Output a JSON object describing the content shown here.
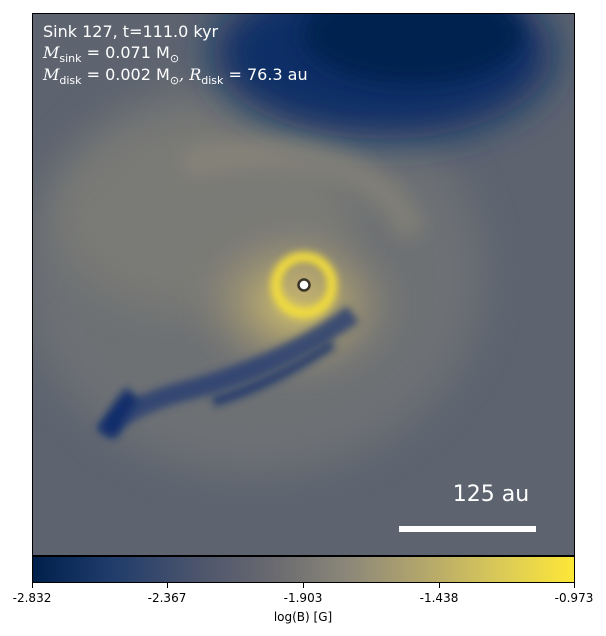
{
  "overlay": {
    "line1": "Sink 127, t=111.0 kyr",
    "msink_symbol": "M",
    "msink_sub": "sink",
    "msink_value": " = 0.071 M",
    "msink_unit_sub": "⊙",
    "mdisk_symbol": "M",
    "mdisk_sub": "disk",
    "mdisk_value": " = 0.002 M",
    "mdisk_unit_sub": "⊙",
    "rdisk_symbol": ", R",
    "rdisk_sub": "disk",
    "rdisk_value": " = 76.3 au"
  },
  "scale_bar": {
    "label": "125 au"
  },
  "colorbar": {
    "label": "log(B) [G]",
    "ticks": [
      "-2.832",
      "-2.367",
      "-1.903",
      "-1.438",
      "-0.973"
    ],
    "colormap": "cividis"
  }
}
